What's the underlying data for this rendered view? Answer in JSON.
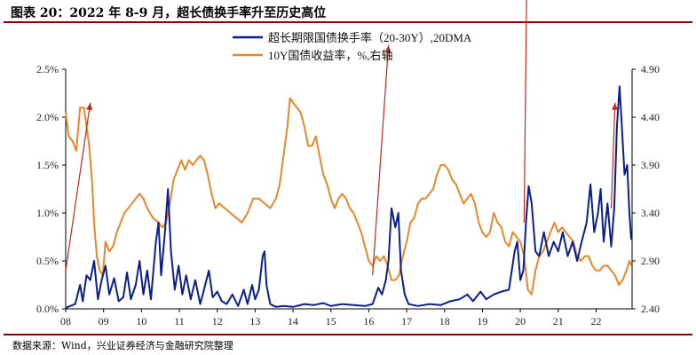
{
  "header": {
    "title": "图表 20：2022 年 8-9 月，超长债换手率升至历史高位"
  },
  "footer": {
    "source": "数据来源：Wind，兴业证券经济与金融研究院整理"
  },
  "colors": {
    "turnover": "#0a1f8a",
    "yield": "#e8862c",
    "arrow": "#c0281c",
    "rule": "#8b0000"
  },
  "chart_data": {
    "type": "line",
    "title": "",
    "xlabel": "",
    "ylabel": "",
    "x_ticks": [
      "08",
      "09",
      "10",
      "11",
      "12",
      "13",
      "14",
      "15",
      "16",
      "17",
      "18",
      "19",
      "20",
      "21",
      "22"
    ],
    "xlim": [
      2008.0,
      2022.95
    ],
    "y_left": {
      "ticks": [
        "0.0%",
        "0.5%",
        "1.0%",
        "1.5%",
        "2.0%",
        "2.5%"
      ],
      "lim": [
        0,
        2.5
      ]
    },
    "y_right": {
      "ticks": [
        "2.40",
        "2.90",
        "3.40",
        "3.90",
        "4.40",
        "4.90"
      ],
      "lim": [
        2.4,
        4.9
      ]
    },
    "legend": {
      "position": "top-left"
    },
    "grid": false,
    "series": [
      {
        "name": "超长期限国债换手率（20-30Y）,20DMA",
        "axis": "left",
        "unit": "%",
        "points": [
          [
            2008.0,
            0.01
          ],
          [
            2008.12,
            0.03
          ],
          [
            2008.25,
            0.05
          ],
          [
            2008.38,
            0.25
          ],
          [
            2008.45,
            0.08
          ],
          [
            2008.55,
            0.35
          ],
          [
            2008.65,
            0.3
          ],
          [
            2008.75,
            0.5
          ],
          [
            2008.85,
            0.1
          ],
          [
            2008.95,
            0.3
          ],
          [
            2009.05,
            0.45
          ],
          [
            2009.15,
            0.15
          ],
          [
            2009.28,
            0.32
          ],
          [
            2009.4,
            0.08
          ],
          [
            2009.52,
            0.12
          ],
          [
            2009.62,
            0.38
          ],
          [
            2009.72,
            0.1
          ],
          [
            2009.85,
            0.25
          ],
          [
            2009.95,
            0.5
          ],
          [
            2010.05,
            0.15
          ],
          [
            2010.15,
            0.4
          ],
          [
            2010.25,
            0.1
          ],
          [
            2010.38,
            0.7
          ],
          [
            2010.45,
            0.9
          ],
          [
            2010.52,
            0.35
          ],
          [
            2010.62,
            0.8
          ],
          [
            2010.7,
            1.25
          ],
          [
            2010.78,
            0.6
          ],
          [
            2010.88,
            0.2
          ],
          [
            2010.98,
            0.45
          ],
          [
            2011.08,
            0.15
          ],
          [
            2011.18,
            0.35
          ],
          [
            2011.3,
            0.1
          ],
          [
            2011.42,
            0.3
          ],
          [
            2011.55,
            0.05
          ],
          [
            2011.65,
            0.2
          ],
          [
            2011.78,
            0.4
          ],
          [
            2011.88,
            0.12
          ],
          [
            2012.0,
            0.18
          ],
          [
            2012.12,
            0.08
          ],
          [
            2012.25,
            0.05
          ],
          [
            2012.4,
            0.15
          ],
          [
            2012.55,
            0.03
          ],
          [
            2012.7,
            0.2
          ],
          [
            2012.8,
            0.05
          ],
          [
            2012.92,
            0.25
          ],
          [
            2013.0,
            0.1
          ],
          [
            2013.1,
            0.2
          ],
          [
            2013.2,
            0.55
          ],
          [
            2013.25,
            0.6
          ],
          [
            2013.3,
            0.25
          ],
          [
            2013.4,
            0.05
          ],
          [
            2013.55,
            0.02
          ],
          [
            2013.75,
            0.03
          ],
          [
            2014.0,
            0.02
          ],
          [
            2014.3,
            0.05
          ],
          [
            2014.55,
            0.04
          ],
          [
            2014.8,
            0.06
          ],
          [
            2015.0,
            0.03
          ],
          [
            2015.3,
            0.05
          ],
          [
            2015.6,
            0.04
          ],
          [
            2015.9,
            0.03
          ],
          [
            2016.1,
            0.05
          ],
          [
            2016.25,
            0.22
          ],
          [
            2016.35,
            0.15
          ],
          [
            2016.45,
            0.3
          ],
          [
            2016.52,
            0.5
          ],
          [
            2016.6,
            1.05
          ],
          [
            2016.7,
            0.85
          ],
          [
            2016.78,
            1.0
          ],
          [
            2016.85,
            0.4
          ],
          [
            2016.95,
            0.15
          ],
          [
            2017.05,
            0.05
          ],
          [
            2017.3,
            0.03
          ],
          [
            2017.6,
            0.05
          ],
          [
            2017.9,
            0.04
          ],
          [
            2018.15,
            0.08
          ],
          [
            2018.4,
            0.1
          ],
          [
            2018.6,
            0.15
          ],
          [
            2018.75,
            0.08
          ],
          [
            2018.95,
            0.18
          ],
          [
            2019.1,
            0.1
          ],
          [
            2019.3,
            0.15
          ],
          [
            2019.5,
            0.18
          ],
          [
            2019.7,
            0.2
          ],
          [
            2019.85,
            0.6
          ],
          [
            2019.92,
            0.7
          ],
          [
            2020.0,
            0.3
          ],
          [
            2020.08,
            0.4
          ],
          [
            2020.15,
            0.9
          ],
          [
            2020.22,
            1.28
          ],
          [
            2020.3,
            1.1
          ],
          [
            2020.4,
            0.6
          ],
          [
            2020.5,
            0.55
          ],
          [
            2020.62,
            0.8
          ],
          [
            2020.75,
            0.55
          ],
          [
            2020.88,
            0.7
          ],
          [
            2021.0,
            0.6
          ],
          [
            2021.12,
            0.8
          ],
          [
            2021.25,
            0.55
          ],
          [
            2021.38,
            0.7
          ],
          [
            2021.5,
            0.5
          ],
          [
            2021.62,
            0.7
          ],
          [
            2021.75,
            0.9
          ],
          [
            2021.85,
            1.3
          ],
          [
            2021.95,
            0.8
          ],
          [
            2022.05,
            1.0
          ],
          [
            2022.12,
            1.25
          ],
          [
            2022.2,
            0.7
          ],
          [
            2022.3,
            1.1
          ],
          [
            2022.4,
            0.65
          ],
          [
            2022.48,
            1.05
          ],
          [
            2022.55,
            1.9
          ],
          [
            2022.62,
            2.32
          ],
          [
            2022.68,
            1.9
          ],
          [
            2022.75,
            1.4
          ],
          [
            2022.82,
            1.5
          ],
          [
            2022.88,
            1.0
          ],
          [
            2022.93,
            0.72
          ]
        ]
      },
      {
        "name": "10Y国债收益率，%,右轴",
        "axis": "right",
        "unit": "%",
        "points": [
          [
            2008.0,
            4.45
          ],
          [
            2008.08,
            4.2
          ],
          [
            2008.18,
            4.15
          ],
          [
            2008.28,
            4.05
          ],
          [
            2008.38,
            4.5
          ],
          [
            2008.48,
            4.5
          ],
          [
            2008.55,
            4.3
          ],
          [
            2008.62,
            4.1
          ],
          [
            2008.7,
            3.7
          ],
          [
            2008.75,
            3.3
          ],
          [
            2008.82,
            2.95
          ],
          [
            2008.9,
            2.8
          ],
          [
            2008.98,
            2.75
          ],
          [
            2009.05,
            3.1
          ],
          [
            2009.15,
            3.0
          ],
          [
            2009.25,
            3.05
          ],
          [
            2009.35,
            3.2
          ],
          [
            2009.45,
            3.3
          ],
          [
            2009.55,
            3.4
          ],
          [
            2009.65,
            3.45
          ],
          [
            2009.75,
            3.5
          ],
          [
            2009.85,
            3.55
          ],
          [
            2009.95,
            3.6
          ],
          [
            2010.05,
            3.55
          ],
          [
            2010.15,
            3.45
          ],
          [
            2010.3,
            3.35
          ],
          [
            2010.45,
            3.3
          ],
          [
            2010.55,
            3.25
          ],
          [
            2010.65,
            3.3
          ],
          [
            2010.75,
            3.5
          ],
          [
            2010.85,
            3.75
          ],
          [
            2010.95,
            3.85
          ],
          [
            2011.05,
            3.95
          ],
          [
            2011.15,
            3.85
          ],
          [
            2011.25,
            3.95
          ],
          [
            2011.35,
            3.9
          ],
          [
            2011.45,
            3.95
          ],
          [
            2011.55,
            4.0
          ],
          [
            2011.65,
            3.95
          ],
          [
            2011.75,
            3.8
          ],
          [
            2011.85,
            3.6
          ],
          [
            2011.95,
            3.45
          ],
          [
            2012.05,
            3.5
          ],
          [
            2012.2,
            3.45
          ],
          [
            2012.35,
            3.4
          ],
          [
            2012.5,
            3.35
          ],
          [
            2012.65,
            3.3
          ],
          [
            2012.8,
            3.4
          ],
          [
            2012.95,
            3.55
          ],
          [
            2013.1,
            3.55
          ],
          [
            2013.25,
            3.5
          ],
          [
            2013.4,
            3.45
          ],
          [
            2013.55,
            3.55
          ],
          [
            2013.65,
            3.7
          ],
          [
            2013.75,
            4.0
          ],
          [
            2013.85,
            4.3
          ],
          [
            2013.92,
            4.6
          ],
          [
            2014.0,
            4.55
          ],
          [
            2014.1,
            4.5
          ],
          [
            2014.2,
            4.45
          ],
          [
            2014.3,
            4.3
          ],
          [
            2014.4,
            4.1
          ],
          [
            2014.5,
            4.1
          ],
          [
            2014.6,
            4.2
          ],
          [
            2014.7,
            4.0
          ],
          [
            2014.8,
            3.8
          ],
          [
            2014.9,
            3.7
          ],
          [
            2015.0,
            3.55
          ],
          [
            2015.1,
            3.45
          ],
          [
            2015.2,
            3.55
          ],
          [
            2015.3,
            3.6
          ],
          [
            2015.4,
            3.55
          ],
          [
            2015.5,
            3.45
          ],
          [
            2015.6,
            3.4
          ],
          [
            2015.7,
            3.3
          ],
          [
            2015.8,
            3.2
          ],
          [
            2015.9,
            3.05
          ],
          [
            2016.0,
            2.9
          ],
          [
            2016.1,
            2.85
          ],
          [
            2016.2,
            2.95
          ],
          [
            2016.3,
            2.9
          ],
          [
            2016.4,
            2.95
          ],
          [
            2016.5,
            2.85
          ],
          [
            2016.6,
            2.7
          ],
          [
            2016.7,
            2.7
          ],
          [
            2016.8,
            2.75
          ],
          [
            2016.9,
            2.95
          ],
          [
            2017.0,
            3.1
          ],
          [
            2017.1,
            3.3
          ],
          [
            2017.2,
            3.35
          ],
          [
            2017.3,
            3.5
          ],
          [
            2017.4,
            3.55
          ],
          [
            2017.5,
            3.55
          ],
          [
            2017.6,
            3.6
          ],
          [
            2017.7,
            3.65
          ],
          [
            2017.8,
            3.8
          ],
          [
            2017.9,
            3.9
          ],
          [
            2018.0,
            3.9
          ],
          [
            2018.1,
            3.85
          ],
          [
            2018.2,
            3.75
          ],
          [
            2018.3,
            3.7
          ],
          [
            2018.4,
            3.6
          ],
          [
            2018.5,
            3.5
          ],
          [
            2018.6,
            3.55
          ],
          [
            2018.7,
            3.6
          ],
          [
            2018.8,
            3.5
          ],
          [
            2018.9,
            3.3
          ],
          [
            2019.0,
            3.2
          ],
          [
            2019.1,
            3.15
          ],
          [
            2019.2,
            3.2
          ],
          [
            2019.3,
            3.4
          ],
          [
            2019.4,
            3.3
          ],
          [
            2019.5,
            3.25
          ],
          [
            2019.6,
            3.1
          ],
          [
            2019.7,
            3.05
          ],
          [
            2019.8,
            3.2
          ],
          [
            2019.9,
            3.15
          ],
          [
            2020.0,
            3.1
          ],
          [
            2020.1,
            2.95
          ],
          [
            2020.2,
            2.6
          ],
          [
            2020.3,
            2.55
          ],
          [
            2020.4,
            2.8
          ],
          [
            2020.5,
            2.95
          ],
          [
            2020.6,
            3.0
          ],
          [
            2020.7,
            3.1
          ],
          [
            2020.8,
            3.2
          ],
          [
            2020.9,
            3.3
          ],
          [
            2021.0,
            3.2
          ],
          [
            2021.1,
            3.25
          ],
          [
            2021.2,
            3.2
          ],
          [
            2021.3,
            3.15
          ],
          [
            2021.4,
            3.1
          ],
          [
            2021.5,
            2.95
          ],
          [
            2021.6,
            2.9
          ],
          [
            2021.7,
            2.95
          ],
          [
            2021.8,
            2.95
          ],
          [
            2021.9,
            2.85
          ],
          [
            2022.0,
            2.8
          ],
          [
            2022.1,
            2.8
          ],
          [
            2022.2,
            2.85
          ],
          [
            2022.3,
            2.85
          ],
          [
            2022.4,
            2.8
          ],
          [
            2022.5,
            2.75
          ],
          [
            2022.6,
            2.65
          ],
          [
            2022.7,
            2.7
          ],
          [
            2022.8,
            2.8
          ],
          [
            2022.88,
            2.9
          ],
          [
            2022.93,
            2.85
          ]
        ]
      }
    ],
    "annotations": [
      {
        "type": "arrow",
        "label": "",
        "from": [
          2008.0,
          0.4
        ],
        "to": [
          2008.65,
          2.15
        ]
      },
      {
        "type": "arrow",
        "label": "",
        "from": [
          2016.1,
          0.35
        ],
        "to": [
          2016.52,
          2.75
        ]
      },
      {
        "type": "arrow",
        "label": "",
        "from": [
          2020.1,
          0.9
        ],
        "to": [
          2020.18,
          3.8
        ]
      },
      {
        "type": "arrow",
        "label": "",
        "from": [
          2022.4,
          1.05
        ],
        "to": [
          2022.5,
          2.15
        ]
      }
    ]
  }
}
